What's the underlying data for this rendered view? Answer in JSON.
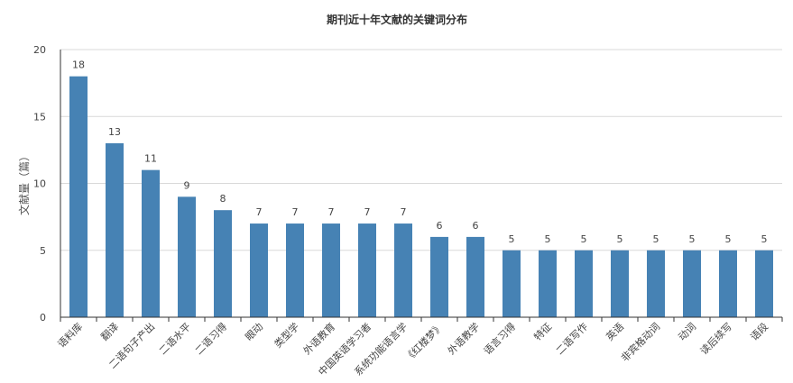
{
  "chart_data": {
    "type": "bar",
    "title": "期刊近十年文献的关键词分布",
    "xlabel": "",
    "ylabel": "文献量（篇）",
    "ylim": [
      0,
      20
    ],
    "yticks": [
      0,
      5,
      10,
      15,
      20
    ],
    "grid": true,
    "bar_color": "#4682b4",
    "categories": [
      "语料库",
      "翻译",
      "二语句子产出",
      "二语水平",
      "二语习得",
      "眼动",
      "类型学",
      "外语教育",
      "中国英语学习者",
      "系统功能语言学",
      "《红楼梦》",
      "外语教学",
      "语言习得",
      "特征",
      "二语写作",
      "英语",
      "非宾格动词",
      "动词",
      "读后续写",
      "语段"
    ],
    "values": [
      18,
      13,
      11,
      9,
      8,
      7,
      7,
      7,
      7,
      7,
      6,
      6,
      5,
      5,
      5,
      5,
      5,
      5,
      5,
      5
    ]
  }
}
